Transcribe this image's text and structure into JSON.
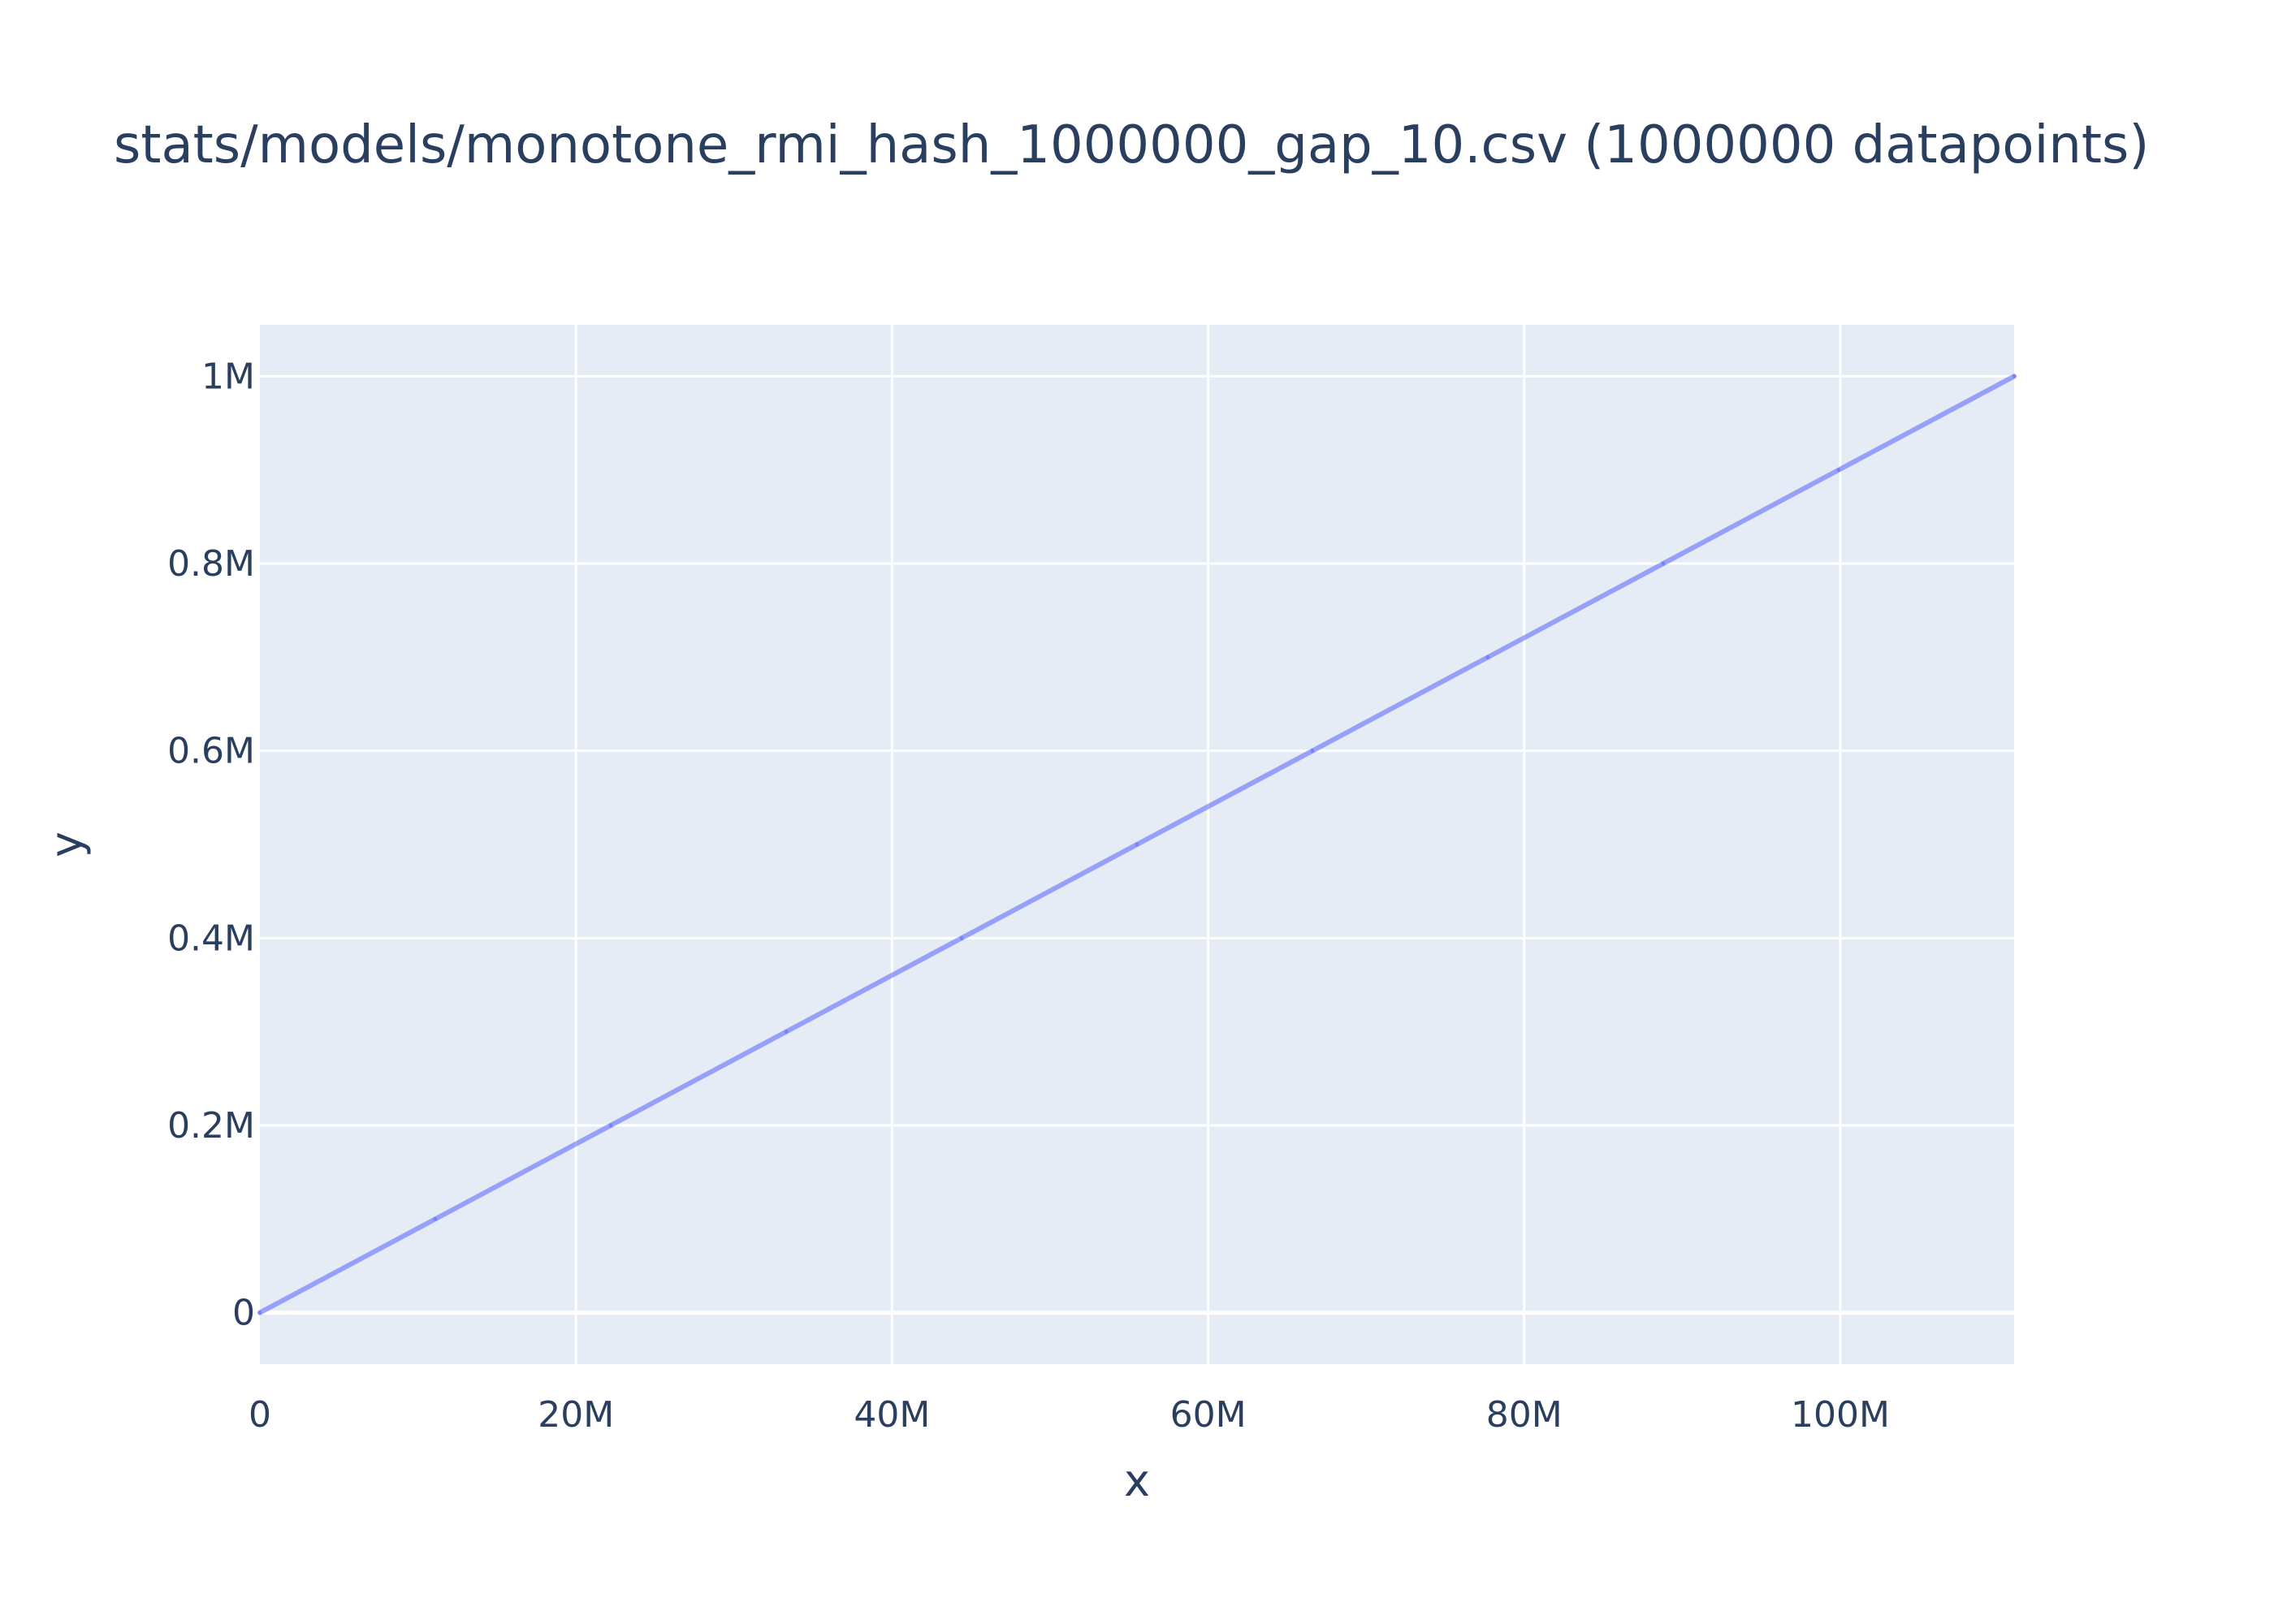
{
  "chart_data": {
    "type": "scatter",
    "title": "stats/models/monotone_rmi_hash_1000000_gap_10.csv (1000000 datapoints)",
    "xlabel": "x",
    "ylabel": "y",
    "xlim": [
      0,
      111000000
    ],
    "ylim": [
      -55000,
      1055000
    ],
    "x_ticks": [
      {
        "value": 0,
        "label": "0"
      },
      {
        "value": 20000000,
        "label": "20M"
      },
      {
        "value": 40000000,
        "label": "40M"
      },
      {
        "value": 60000000,
        "label": "60M"
      },
      {
        "value": 80000000,
        "label": "80M"
      },
      {
        "value": 100000000,
        "label": "100M"
      }
    ],
    "y_ticks": [
      {
        "value": 0,
        "label": "0"
      },
      {
        "value": 200000,
        "label": "0.2M"
      },
      {
        "value": 400000,
        "label": "0.4M"
      },
      {
        "value": 600000,
        "label": "0.6M"
      },
      {
        "value": 800000,
        "label": "0.8M"
      },
      {
        "value": 1000000,
        "label": "1M"
      }
    ],
    "grid": true,
    "series": [
      {
        "color": "#636efa",
        "opacity": 0.6,
        "x": [
          0,
          11100000,
          22200000,
          33300000,
          44400000,
          55500000,
          66600000,
          77700000,
          88800000,
          99900000,
          111000000
        ],
        "y": [
          0,
          100000,
          200000,
          300000,
          400000,
          500000,
          600000,
          700000,
          800000,
          900000,
          1000000
        ]
      }
    ],
    "colors": {
      "plot_background": "#e5ecf6",
      "grid": "#ffffff",
      "text": "#2a3f5f"
    }
  }
}
